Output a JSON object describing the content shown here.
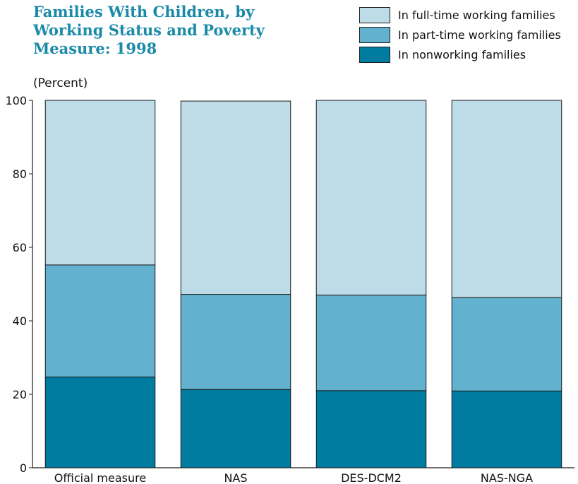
{
  "title_lines": [
    "Families With Children, by",
    "Working Status and Poverty",
    "Measure: 1998"
  ],
  "unit_label": "(Percent)",
  "legend": [
    {
      "label": "In full-time working families",
      "color": "#bedce8"
    },
    {
      "label": "In part-time working families",
      "color": "#62b1ce"
    },
    {
      "label": "In nonworking families",
      "color": "#007ca0"
    }
  ],
  "chart_data": {
    "type": "bar",
    "stacked": true,
    "categories": [
      "Official measure",
      "NAS",
      "DES-DCM2",
      "NAS-NGA"
    ],
    "series": [
      {
        "name": "In nonworking families",
        "values": [
          24.7,
          21.3,
          21.0,
          20.9
        ]
      },
      {
        "name": "In part-time working families",
        "values": [
          30.5,
          25.9,
          26.0,
          25.4
        ]
      },
      {
        "name": "In full-time working families",
        "values": [
          44.8,
          52.6,
          53.0,
          53.7
        ]
      }
    ],
    "ylim": [
      0,
      100
    ],
    "yticks": [
      0,
      20,
      40,
      60,
      80,
      100
    ],
    "grid": false,
    "legend_position": "top-right"
  }
}
